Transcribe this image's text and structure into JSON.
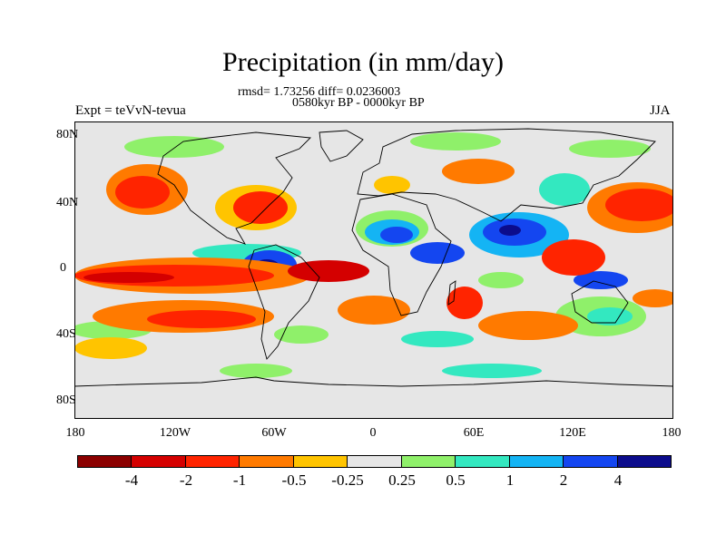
{
  "title": "Precipitation (in mm/day)",
  "stats": "rmsd= 1.73256 diff= 0.0236003",
  "periods": "0580kyr BP - 0000kyr BP",
  "experiment": "Expt = teVvN-tevua",
  "season": "JJA",
  "map": {
    "projection": "cylindrical-equidistant",
    "lat_labels": [
      "80N",
      "40N",
      "0",
      "40S",
      "80S"
    ],
    "lon_labels": [
      "180",
      "120W",
      "60W",
      "0",
      "60E",
      "120E",
      "180"
    ],
    "background_color": "#e6e6e6",
    "coastline_color": "#000000"
  },
  "colorbar": {
    "labels": [
      "-4",
      "-2",
      "-1",
      "-0.5",
      "-0.25",
      "0.25",
      "0.5",
      "1",
      "2",
      "4"
    ],
    "colors": [
      "#8b0000",
      "#d40000",
      "#ff2400",
      "#ff7a00",
      "#ffc400",
      "#e6e6e6",
      "#8ff06a",
      "#33e8c0",
      "#14b4f4",
      "#1446f0",
      "#0c0c8c"
    ]
  }
}
